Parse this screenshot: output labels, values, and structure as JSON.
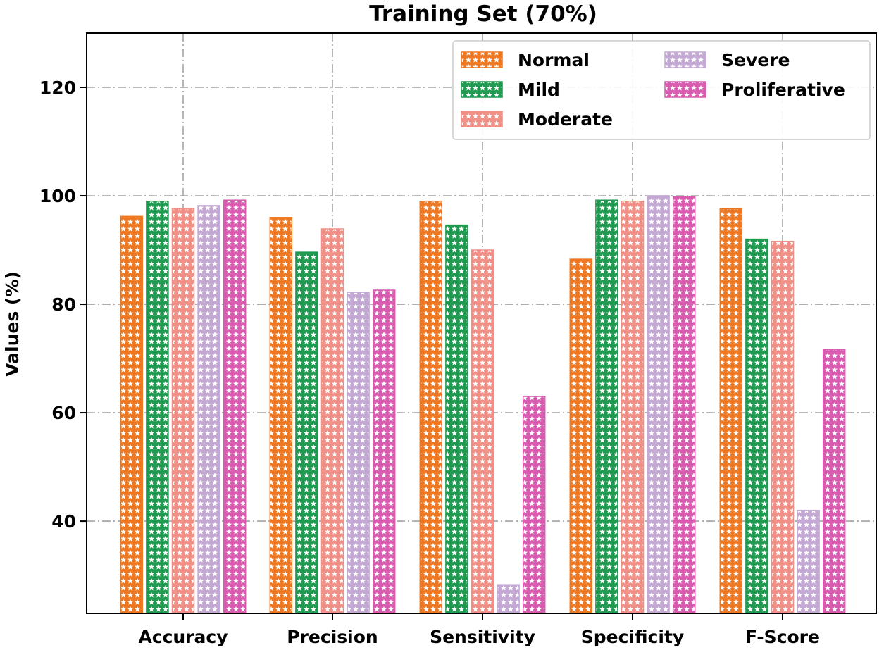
{
  "chart_data": {
    "type": "bar",
    "title": "Training Set (70%)",
    "xlabel": "",
    "ylabel": "Values (%)",
    "ylim": [
      23,
      130
    ],
    "yticks": [
      40,
      60,
      80,
      100,
      120
    ],
    "grid": true,
    "legend_position": "top-right",
    "categories": [
      "Accuracy",
      "Precision",
      "Sensitivity",
      "Specificity",
      "F-Score"
    ],
    "series": [
      {
        "name": "Normal",
        "color": "#ee7722",
        "values": [
          96.2,
          96.0,
          99.0,
          88.3,
          97.6
        ]
      },
      {
        "name": "Mild",
        "color": "#1f9a50",
        "values": [
          99.0,
          89.6,
          94.6,
          99.2,
          92.0
        ]
      },
      {
        "name": "Moderate",
        "color": "#f08f86",
        "values": [
          97.6,
          93.9,
          90.0,
          99.0,
          91.6
        ]
      },
      {
        "name": "Severe",
        "color": "#c3a8d4",
        "values": [
          98.2,
          82.2,
          28.3,
          100.0,
          42.0
        ]
      },
      {
        "name": "Proliferative",
        "color": "#d85bb0",
        "values": [
          99.2,
          82.6,
          63.0,
          99.8,
          71.6
        ]
      }
    ]
  }
}
